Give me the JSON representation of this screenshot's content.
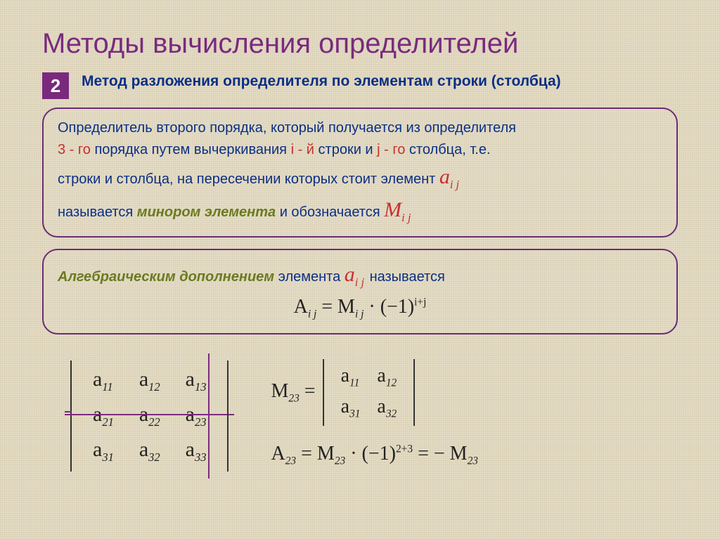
{
  "title": "Методы вычисления определителей",
  "badge": "2",
  "method_title": "Метод разложения определителя по элементам строки (столбца)",
  "box1": {
    "line1_a": "Определитель второго порядка, который получается из определителя",
    "line2_a": "3 - го",
    "line2_b": " порядка путем вычеркивания ",
    "line2_c": "i - й",
    "line2_d": " строки и ",
    "line2_e": "j - го",
    "line2_f": " столбца, т.е.",
    "line3_a": "строки и столбца, на пересечении которых стоит элемент  ",
    "elem_a": "a",
    "elem_a_sub": "i j",
    "line4_a": "называется ",
    "line4_b": "минором элемента",
    "line4_c": " и обозначается  ",
    "elem_m": "M",
    "elem_m_sub": "i j"
  },
  "box2": {
    "line1_a": "Алгебраическим дополнением",
    "line1_b": " элемента  ",
    "elem_a": "a",
    "elem_a_sub": "i j",
    "line1_c": "  называется",
    "formula_A": "A",
    "formula_A_sub": "i j",
    "formula_eq": " = ",
    "formula_M": "M",
    "formula_M_sub": "i j",
    "formula_dot": " · ",
    "formula_base": "(−1)",
    "formula_exp": "i+j"
  },
  "det3": {
    "cells": [
      [
        "a",
        "11",
        "a",
        "12",
        "a",
        "13"
      ],
      [
        "a",
        "21",
        "a",
        "22",
        "a",
        "23"
      ],
      [
        "a",
        "31",
        "a",
        "32",
        "a",
        "33"
      ]
    ]
  },
  "minor": {
    "M": "M",
    "M_sub": "23",
    "eq": " = ",
    "cells": [
      [
        "a",
        "11",
        "a",
        "12"
      ],
      [
        "a",
        "31",
        "a",
        "32"
      ]
    ]
  },
  "cofactor": {
    "A": "A",
    "A_sub": "23",
    "eq1": " = ",
    "M": "M",
    "M_sub": "23",
    "dot": " · ",
    "base": "(−1)",
    "exp": "2+3",
    "eq2": " = −",
    "M2": "M",
    "M2_sub": "23"
  },
  "colors": {
    "title": "#7a2a7d",
    "blue": "#0a2f84",
    "red": "#c62f2f",
    "olive": "#6b7a1f",
    "border": "#6a2a75",
    "strike": "#7a2a7d",
    "background": "#e4dcc5"
  }
}
